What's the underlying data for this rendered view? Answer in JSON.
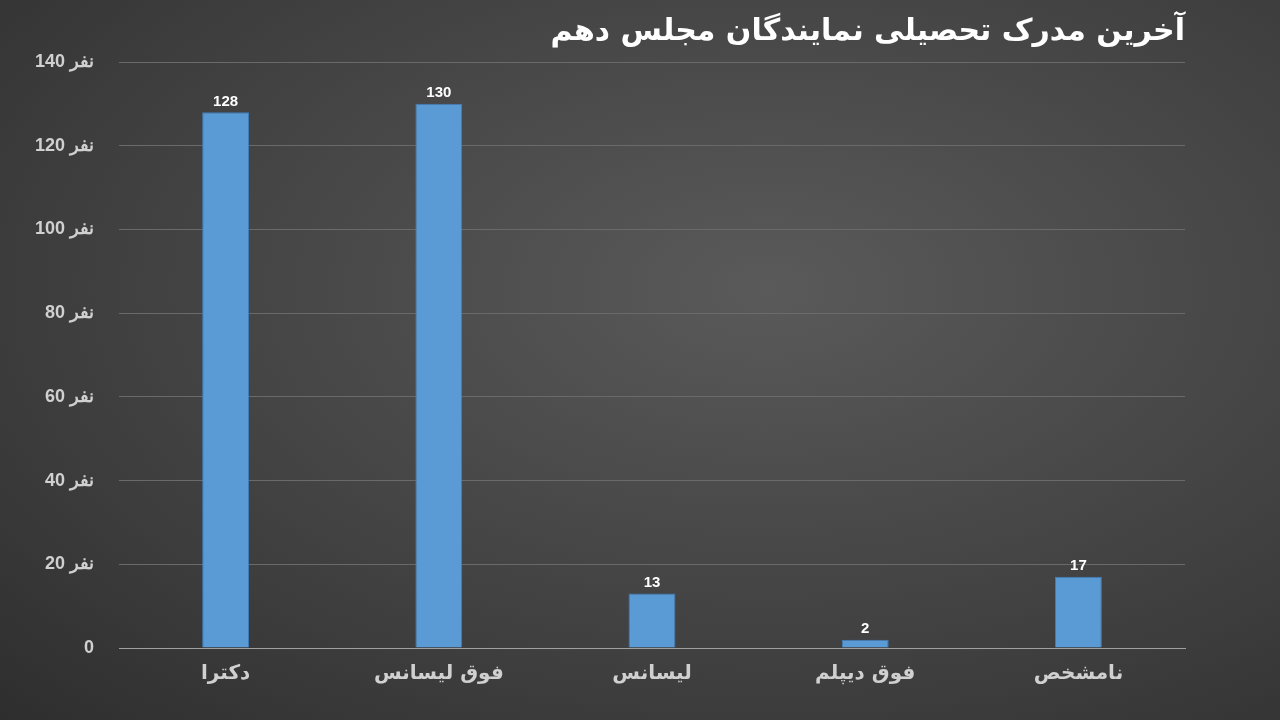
{
  "chart_data": {
    "type": "bar",
    "title": "آخرین مدرک تحصیلی نمایندگان مجلس دهم",
    "categories": [
      "دکترا",
      "فوق لیسانس",
      "لیسانس",
      "فوق دیپلم",
      "نامشخص"
    ],
    "values": [
      128,
      130,
      13,
      2,
      17
    ],
    "color": "#5b9bd5",
    "ylim": [
      0,
      140
    ],
    "yticks": [
      0,
      {
        "value": 20,
        "label": "20 نفر"
      },
      {
        "value": 40,
        "label": "40 نفر"
      },
      {
        "value": 60,
        "label": "60 نفر"
      },
      {
        "value": 80,
        "label": "80 نفر"
      },
      {
        "value": 100,
        "label": "100 نفر"
      },
      {
        "value": 120,
        "label": "120 نفر"
      },
      {
        "value": 140,
        "label": "140 نفر"
      }
    ],
    "grid": "y",
    "data_labels": true
  }
}
